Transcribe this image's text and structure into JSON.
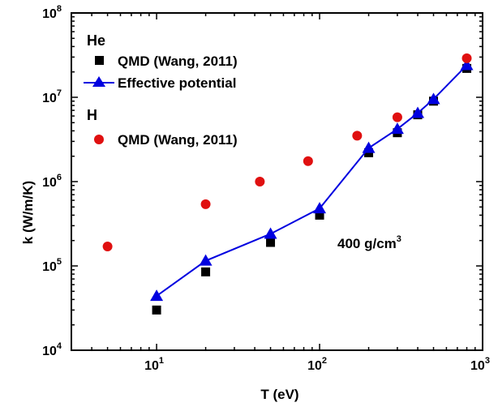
{
  "chart_data": {
    "type": "scatter",
    "xlabel": "T (eV)",
    "ylabel": "k (W/m/K)",
    "xscale": "log",
    "yscale": "log",
    "xlim": [
      3,
      1000
    ],
    "ylim": [
      10000,
      100000000
    ],
    "grid": false,
    "legend_position": "top-left",
    "x_ticks": [
      {
        "base": "10",
        "exp": "1",
        "value": 10
      },
      {
        "base": "10",
        "exp": "2",
        "value": 100
      },
      {
        "base": "10",
        "exp": "3",
        "value": 1000
      }
    ],
    "y_ticks": [
      {
        "base": "10",
        "exp": "4",
        "value": 10000
      },
      {
        "base": "10",
        "exp": "5",
        "value": 100000
      },
      {
        "base": "10",
        "exp": "6",
        "value": 1000000
      },
      {
        "base": "10",
        "exp": "7",
        "value": 10000000
      },
      {
        "base": "10",
        "exp": "8",
        "value": 100000000
      }
    ],
    "legend": {
      "group_he": "He",
      "group_h": "H",
      "entries": [
        {
          "label": "QMD (Wang, 2011)",
          "group": "He",
          "marker": "square",
          "color": "#000000"
        },
        {
          "label": "Effective potential",
          "group": "He",
          "marker": "triangle",
          "color": "#0000e0"
        },
        {
          "label": "QMD (Wang, 2011)",
          "group": "H",
          "marker": "circle",
          "color": "#e01010"
        }
      ]
    },
    "annotation": {
      "text": "400 g/cm",
      "sup": "3"
    },
    "series": [
      {
        "name": "QMD (Wang, 2011)",
        "group": "He",
        "marker": "square",
        "color": "#000000",
        "x": [
          10,
          20,
          50,
          100,
          200,
          300,
          400,
          500,
          800
        ],
        "y": [
          30000,
          85000,
          190000,
          400000,
          2200000,
          3800000,
          6200000,
          9000000,
          22000000
        ]
      },
      {
        "name": "Effective potential",
        "group": "He",
        "marker": "triangle",
        "color": "#0000e0",
        "line": true,
        "x": [
          10,
          20,
          50,
          100,
          200,
          300,
          400,
          500,
          800
        ],
        "y": [
          44000,
          115000,
          240000,
          480000,
          2500000,
          4200000,
          6500000,
          9500000,
          24000000
        ]
      },
      {
        "name": "QMD (Wang, 2011)",
        "group": "H",
        "marker": "circle",
        "color": "#e01010",
        "x": [
          5,
          20,
          43,
          85,
          170,
          300,
          800
        ],
        "y": [
          170000,
          540000,
          1000000,
          1750000,
          3500000,
          5800000,
          29000000
        ]
      }
    ]
  }
}
